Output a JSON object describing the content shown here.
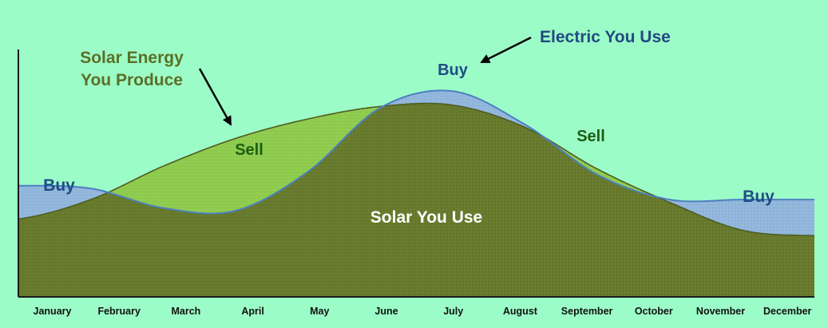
{
  "colors": {
    "background": "#9cfcc8",
    "solar_used_fill": "#677a2c",
    "solar_used_edge": "#4e5c21",
    "sell_fill": "#8fcc4e",
    "buy_fill": "#92b7dc",
    "electric_line": "#4d7fc0",
    "axis": "#1a1a1a",
    "annotation_green": "#5b6f25",
    "annotation_blue": "#244a82",
    "label_green": "#1b5e12",
    "label_blue": "#1f4c86",
    "label_white": "#ffffff"
  },
  "chart_data": {
    "type": "area",
    "categories": [
      "January",
      "February",
      "March",
      "April",
      "May",
      "June",
      "July",
      "August",
      "September",
      "October",
      "November",
      "December"
    ],
    "series": [
      {
        "name": "Solar Energy You Produce",
        "values": [
          2.8,
          3.5,
          4.7,
          5.7,
          6.4,
          6.85,
          6.9,
          6.1,
          4.6,
          3.4,
          2.4,
          2.2
        ]
      },
      {
        "name": "Electric You Use",
        "values": [
          4.0,
          3.9,
          3.2,
          3.1,
          4.5,
          6.8,
          7.4,
          6.2,
          4.4,
          3.5,
          3.5,
          3.5
        ]
      }
    ],
    "ylim": [
      0,
      8.9
    ],
    "grid": false,
    "axes": {
      "y_tick_labels": false
    },
    "annotations": {
      "solar_produce": [
        "Solar Energy",
        "You Produce"
      ],
      "electric_use": "Electric You Use",
      "solar_you_use": "Solar You Use",
      "buy": "Buy",
      "sell": "Sell"
    }
  }
}
